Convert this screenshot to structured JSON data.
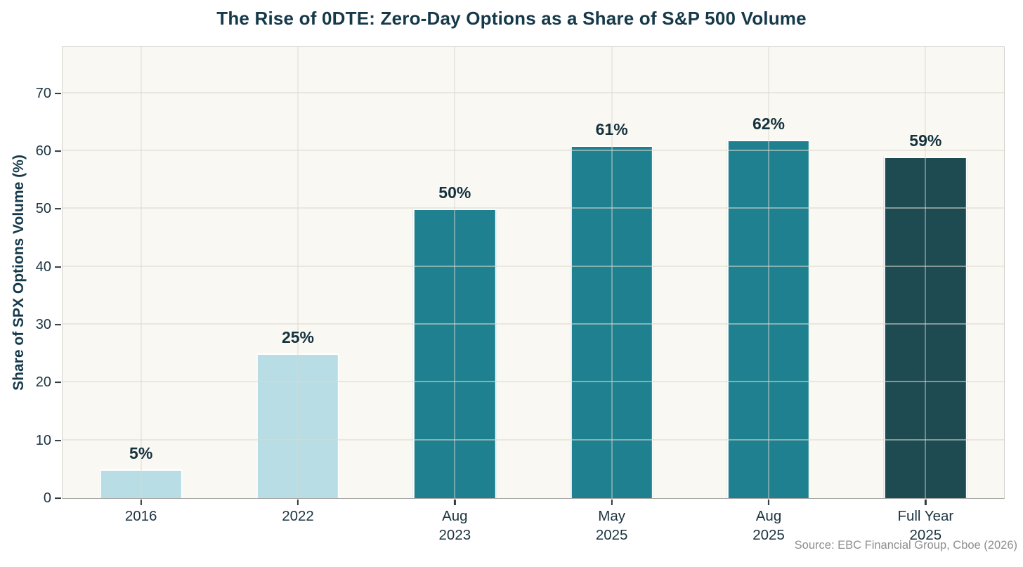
{
  "chart_data": {
    "type": "bar",
    "title": "The Rise of 0DTE: Zero-Day Options as a Share of S&P 500 Volume",
    "xlabel": "",
    "ylabel": "Share of SPX Options Volume (%)",
    "source": "Source: EBC Financial Group, Cboe (2026)",
    "categories": [
      "2016",
      "2022",
      "Aug\n2023",
      "May\n2025",
      "Aug\n2025",
      "Full Year\n2025"
    ],
    "values": [
      5,
      25,
      50,
      61,
      62,
      59
    ],
    "value_labels": [
      "5%",
      "25%",
      "50%",
      "61%",
      "62%",
      "59%"
    ],
    "bar_colors": [
      "#b8dde4",
      "#b8dde4",
      "#1f8190",
      "#1f8190",
      "#1f8190",
      "#1e4a52"
    ],
    "ylim": [
      0,
      78
    ],
    "yticks": [
      0,
      10,
      20,
      30,
      40,
      50,
      60,
      70
    ],
    "grid": true,
    "legend_position": "none",
    "style": {
      "title_color": "#16394a",
      "label_color": "#14323d",
      "tick_color": "#1b3340",
      "plot_background": "#faf8f2",
      "page_background": "#ffffff",
      "gridline_color": "#dbd8ce",
      "bar_edge_color": "#ffffff",
      "source_color": "#8e8e8e"
    }
  }
}
